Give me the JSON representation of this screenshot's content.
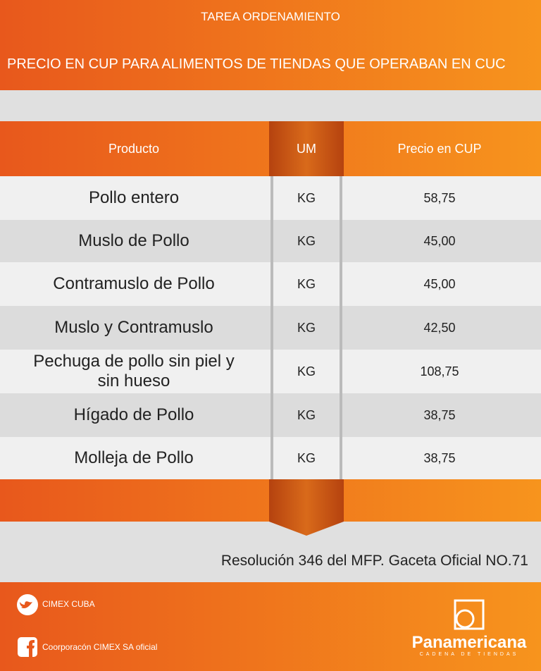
{
  "header": {
    "title": "TAREA  ORDENAMIENTO",
    "subtitle": "PRECIO EN CUP PARA ALIMENTOS DE TIENDAS QUE OPERABAN EN CUC"
  },
  "table": {
    "columns": [
      "Producto",
      "UM",
      "Precio en CUP"
    ],
    "rows": [
      [
        "Pollo entero",
        "KG",
        "58,75"
      ],
      [
        "Muslo de Pollo",
        "KG",
        "45,00"
      ],
      [
        "Contramuslo de Pollo",
        "KG",
        "45,00"
      ],
      [
        "Muslo y Contramuslo",
        "KG",
        "42,50"
      ],
      [
        "Pechuga de pollo sin piel y sin hueso",
        "KG",
        "108,75"
      ],
      [
        "Hígado de Pollo",
        "KG",
        "38,75"
      ],
      [
        "Molleja de Pollo",
        "KG",
        "38,75"
      ]
    ]
  },
  "note": "Resolución 346 del MFP. Gaceta Oficial NO.71",
  "footer": {
    "social": [
      "CIMEX CUBA",
      "Coorporacón CIMEX SA oficial"
    ],
    "brand": {
      "name": "Panamericana",
      "tagline": "CADENA DE TIENDAS"
    }
  }
}
